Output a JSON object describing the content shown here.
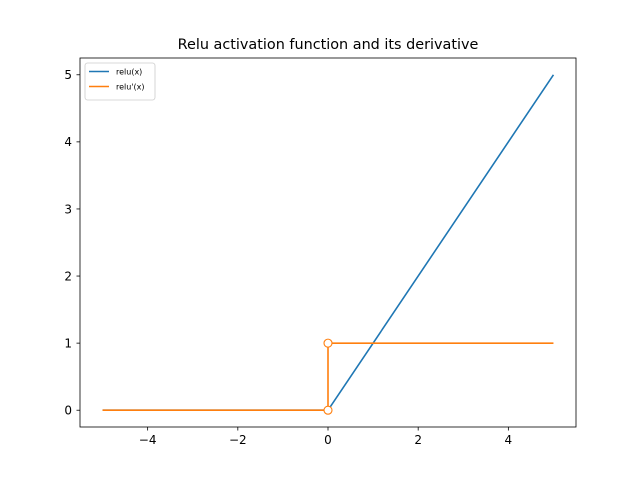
{
  "chart_data": {
    "type": "line",
    "title": "Relu activation function and its derivative",
    "xlabel": "",
    "ylabel": "",
    "xlim": [
      -5.5,
      5.5
    ],
    "ylim": [
      -0.25,
      5.25
    ],
    "x_ticks": [
      -4,
      -2,
      0,
      2,
      4
    ],
    "x_tick_labels": [
      "−4",
      "−2",
      "0",
      "2",
      "4"
    ],
    "y_ticks": [
      0,
      1,
      2,
      3,
      4,
      5
    ],
    "y_tick_labels": [
      "0",
      "1",
      "2",
      "3",
      "4",
      "5"
    ],
    "grid": false,
    "legend_placement": "top-left",
    "series": [
      {
        "name": "relu(x)",
        "color": "#1f77b4",
        "x": [
          -5,
          0,
          5
        ],
        "y": [
          0,
          0,
          5
        ]
      },
      {
        "name": "relu'(x)",
        "color": "#ff7f0e",
        "x": [
          -5,
          0,
          0,
          5
        ],
        "y": [
          0,
          0,
          1,
          1
        ]
      }
    ],
    "open_markers": [
      {
        "x": 0,
        "y": 0,
        "color": "#ff7f0e"
      },
      {
        "x": 0,
        "y": 1,
        "color": "#ff7f0e"
      }
    ]
  }
}
